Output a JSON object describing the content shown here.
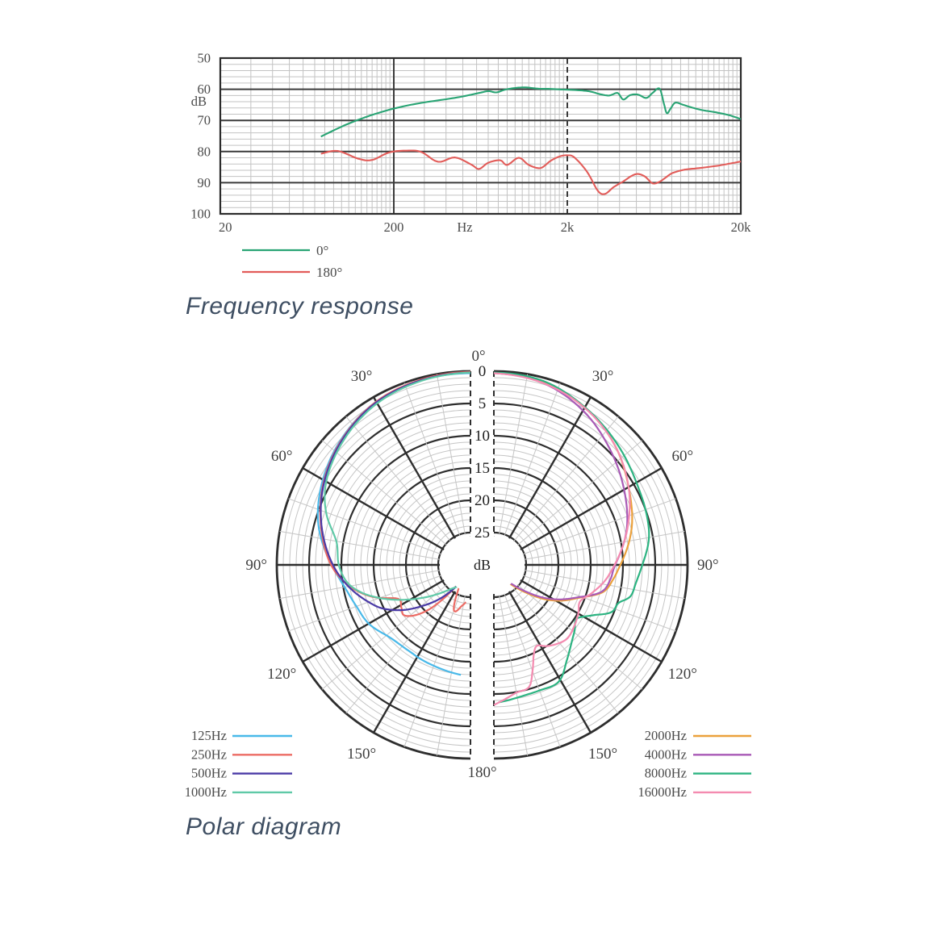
{
  "chart_data": [
    {
      "id": "freq_response",
      "type": "line",
      "title": "Frequency response",
      "xscale": "log",
      "xlim": [
        20,
        20000
      ],
      "ylim": [
        100,
        50
      ],
      "ylabel": "dB",
      "x_unit_label": "Hz",
      "x_ticks": [
        {
          "value": 20,
          "label": "20"
        },
        {
          "value": 200,
          "label": "200"
        },
        {
          "value": 2000,
          "label": "2k"
        },
        {
          "value": 20000,
          "label": "20k"
        }
      ],
      "y_ticks": [
        50,
        60,
        70,
        80,
        90,
        100
      ],
      "grid": {
        "y_minor_step_db": 2,
        "x_minor": "log-integer-lines",
        "major_color": "#3b3b3b",
        "minor_color": "#c3c3c3"
      },
      "legend_position": "below-left",
      "series": [
        {
          "name": "0°",
          "color": "#29a474",
          "points": [
            [
              76,
              75.2
            ],
            [
              90,
              73.2
            ],
            [
              110,
              71.0
            ],
            [
              140,
              68.8
            ],
            [
              170,
              67.3
            ],
            [
              200,
              66.2
            ],
            [
              250,
              65.0
            ],
            [
              310,
              64.1
            ],
            [
              400,
              63.2
            ],
            [
              500,
              62.3
            ],
            [
              620,
              61.2
            ],
            [
              700,
              60.6
            ],
            [
              780,
              61.0
            ],
            [
              880,
              60.1
            ],
            [
              1000,
              59.6
            ],
            [
              1150,
              59.4
            ],
            [
              1350,
              59.8
            ],
            [
              1600,
              59.9
            ],
            [
              1900,
              60.1
            ],
            [
              2300,
              60.3
            ],
            [
              2700,
              60.7
            ],
            [
              3100,
              61.6
            ],
            [
              3500,
              62.0
            ],
            [
              3900,
              61.2
            ],
            [
              4200,
              63.3
            ],
            [
              4600,
              61.9
            ],
            [
              5100,
              61.7
            ],
            [
              5700,
              62.8
            ],
            [
              6200,
              61.2
            ],
            [
              6800,
              59.8
            ],
            [
              7200,
              64.5
            ],
            [
              7500,
              67.7
            ],
            [
              7900,
              66.1
            ],
            [
              8400,
              64.3
            ],
            [
              9300,
              65.0
            ],
            [
              10500,
              65.9
            ],
            [
              12000,
              66.7
            ],
            [
              14000,
              67.3
            ],
            [
              16500,
              68.1
            ],
            [
              18500,
              68.9
            ],
            [
              20000,
              69.6
            ]
          ]
        },
        {
          "name": "180°",
          "color": "#e25c59",
          "points": [
            [
              76,
              80.7
            ],
            [
              95,
              79.8
            ],
            [
              125,
              82.3
            ],
            [
              150,
              82.7
            ],
            [
              190,
              80.2
            ],
            [
              245,
              79.7
            ],
            [
              290,
              80.2
            ],
            [
              360,
              83.3
            ],
            [
              450,
              81.9
            ],
            [
              560,
              84.2
            ],
            [
              620,
              85.6
            ],
            [
              700,
              83.6
            ],
            [
              820,
              82.8
            ],
            [
              900,
              84.3
            ],
            [
              1050,
              82.0
            ],
            [
              1200,
              84.3
            ],
            [
              1400,
              85.3
            ],
            [
              1600,
              83.0
            ],
            [
              1800,
              81.6
            ],
            [
              2000,
              81.2
            ],
            [
              2200,
              81.9
            ],
            [
              2600,
              86.5
            ],
            [
              3000,
              92.6
            ],
            [
              3300,
              93.6
            ],
            [
              3700,
              91.4
            ],
            [
              4200,
              89.6
            ],
            [
              4700,
              87.8
            ],
            [
              5100,
              87.2
            ],
            [
              5600,
              88.0
            ],
            [
              6200,
              90.2
            ],
            [
              6800,
              89.7
            ],
            [
              7400,
              88.3
            ],
            [
              8000,
              87.0
            ],
            [
              9000,
              86.1
            ],
            [
              9800,
              85.7
            ],
            [
              11500,
              85.3
            ],
            [
              14500,
              84.6
            ],
            [
              17500,
              83.8
            ],
            [
              20000,
              83.2
            ]
          ]
        }
      ]
    },
    {
      "id": "polar",
      "type": "polar",
      "title": "Polar diagram",
      "radial_unit": "dB",
      "radial_ticks": [
        0,
        5,
        10,
        15,
        20,
        25
      ],
      "attenuation_at_center_db": 30,
      "angle_labels": [
        "0°",
        "30°",
        "60°",
        "90°",
        "120°",
        "150°",
        "180°"
      ],
      "ring_minor_step_db": 1,
      "spoke_minor_step_deg": 10,
      "spoke_major_step_deg": 30,
      "left_series": [
        {
          "name": "125Hz",
          "color": "#49b9e9",
          "points": [
            [
              0,
              0.3
            ],
            [
              15,
              0.4
            ],
            [
              30,
              0.8
            ],
            [
              45,
              2.0
            ],
            [
              60,
              3.6
            ],
            [
              75,
              5.6
            ],
            [
              90,
              8.5
            ],
            [
              100,
              10.2
            ],
            [
              110,
              11.2
            ],
            [
              120,
              11.8
            ],
            [
              132,
              13.2
            ],
            [
              143,
              13.6
            ],
            [
              152,
              13.5
            ],
            [
              163,
              13.3
            ],
            [
              175,
              12.9
            ]
          ]
        },
        {
          "name": "250Hz",
          "color": "#ec6b64",
          "points": [
            [
              0,
              0.1
            ],
            [
              15,
              0.3
            ],
            [
              30,
              0.8
            ],
            [
              45,
              2.1
            ],
            [
              60,
              3.8
            ],
            [
              75,
              6.0
            ],
            [
              90,
              8.4
            ],
            [
              100,
              11.0
            ],
            [
              108,
              14.0
            ],
            [
              115,
              17.6
            ],
            [
              122,
              17.4
            ],
            [
              128,
              17.2
            ],
            [
              136,
              20.0
            ],
            [
              146,
              26.0
            ],
            [
              152,
              26.5
            ],
            [
              160,
              22.5
            ],
            [
              168,
              23.5
            ],
            [
              173,
              24.2
            ]
          ]
        },
        {
          "name": "500Hz",
          "color": "#4a3aa6",
          "points": [
            [
              0,
              0.2
            ],
            [
              15,
              0.4
            ],
            [
              30,
              0.9
            ],
            [
              45,
              2.2
            ],
            [
              60,
              3.9
            ],
            [
              75,
              6.1
            ],
            [
              90,
              8.7
            ],
            [
              100,
              10.8
            ],
            [
              110,
              13.2
            ],
            [
              116,
              14.7
            ],
            [
              124,
              17.5
            ],
            [
              130,
              20.0
            ],
            [
              137,
              22.6
            ],
            [
              143,
              24.8
            ],
            [
              148,
              26.5
            ]
          ]
        },
        {
          "name": "1000Hz",
          "color": "#5fc9a7",
          "points": [
            [
              0,
              0.2
            ],
            [
              15,
              0.5
            ],
            [
              30,
              1.1
            ],
            [
              45,
              2.4
            ],
            [
              60,
              4.2
            ],
            [
              70,
              6.2
            ],
            [
              80,
              8.9
            ],
            [
              90,
              9.6
            ],
            [
              98,
              10.7
            ],
            [
              104,
              12.5
            ],
            [
              110,
              15.0
            ],
            [
              118,
              18.5
            ],
            [
              126,
              21.5
            ],
            [
              134,
              23.8
            ],
            [
              141,
              25.2
            ],
            [
              148,
              26.0
            ]
          ]
        }
      ],
      "right_series": [
        {
          "name": "2000Hz",
          "color": "#eba13c",
          "points": [
            [
              0,
              0.3
            ],
            [
              15,
              0.7
            ],
            [
              30,
              1.8
            ],
            [
              45,
              3.6
            ],
            [
              60,
              5.9
            ],
            [
              75,
              7.9
            ],
            [
              90,
              10.4
            ],
            [
              97,
              11.4
            ],
            [
              104,
              12.6
            ],
            [
              111,
              15.8
            ],
            [
              118,
              18.2
            ],
            [
              124,
              20.5
            ],
            [
              131,
              23.5
            ],
            [
              138,
              25.8
            ],
            [
              145,
              27.0
            ],
            [
              152,
              28.0
            ]
          ]
        },
        {
          "name": "4000Hz",
          "color": "#a85ab6",
          "points": [
            [
              0,
              0.3
            ],
            [
              15,
              0.8
            ],
            [
              30,
              2.4
            ],
            [
              45,
              4.6
            ],
            [
              60,
              6.7
            ],
            [
              75,
              8.7
            ],
            [
              90,
              11.2
            ],
            [
              97,
              11.8
            ],
            [
              104,
              12.8
            ],
            [
              111,
              16.0
            ],
            [
              118,
              18.6
            ],
            [
              124,
              21.0
            ],
            [
              131,
              24.0
            ],
            [
              138,
              26.2
            ],
            [
              146,
              27.5
            ],
            [
              153,
              28.5
            ]
          ]
        },
        {
          "name": "8000Hz",
          "color": "#2cb381",
          "points": [
            [
              0,
              0.2
            ],
            [
              15,
              0.5
            ],
            [
              30,
              1.8
            ],
            [
              45,
              3.2
            ],
            [
              60,
              4.5
            ],
            [
              70,
              5.0
            ],
            [
              80,
              5.6
            ],
            [
              90,
              7.0
            ],
            [
              97,
              7.8
            ],
            [
              103,
              8.3
            ],
            [
              107,
              9.8
            ],
            [
              112,
              10.4
            ],
            [
              117,
              12.8
            ],
            [
              123,
              14.7
            ],
            [
              129,
              13.9
            ],
            [
              136,
              12.8
            ],
            [
              143,
              11.3
            ],
            [
              151,
              9.3
            ],
            [
              160,
              9.3
            ],
            [
              168,
              9.2
            ],
            [
              178,
              8.7
            ]
          ]
        },
        {
          "name": "16000Hz",
          "color": "#f48bb0",
          "points": [
            [
              0,
              0.3
            ],
            [
              15,
              0.8
            ],
            [
              30,
              1.9
            ],
            [
              45,
              3.6
            ],
            [
              60,
              5.9
            ],
            [
              75,
              8.6
            ],
            [
              90,
              11.3
            ],
            [
              98,
              12.6
            ],
            [
              106,
              14.2
            ],
            [
              113,
              15.5
            ],
            [
              120,
              14.9
            ],
            [
              128,
              14.3
            ],
            [
              135,
              13.9
            ],
            [
              141,
              14.3
            ],
            [
              147,
              15.0
            ],
            [
              152,
              15.8
            ],
            [
              156,
              14.8
            ],
            [
              160,
              12.5
            ],
            [
              164,
              10.3
            ],
            [
              170,
              9.9
            ],
            [
              176,
              9.0
            ],
            [
              180,
              8.3
            ]
          ]
        }
      ]
    }
  ]
}
